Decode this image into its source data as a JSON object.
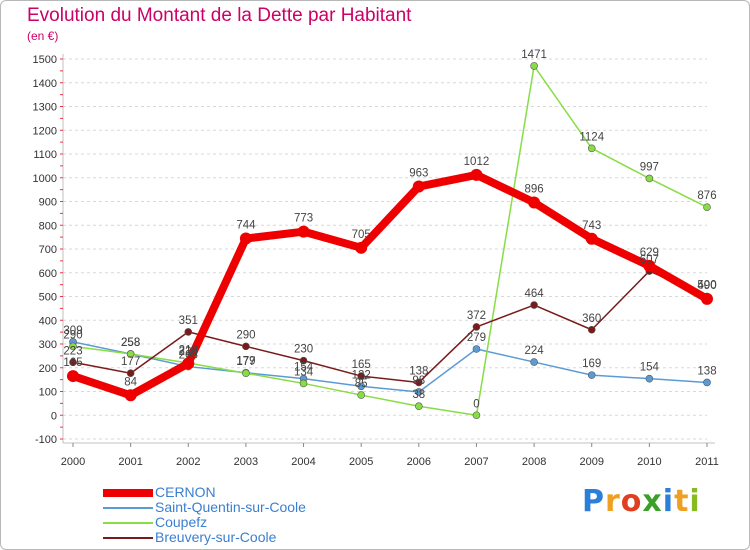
{
  "title": "Evolution du Montant de la Dette par Habitant",
  "subtitle": "(en €)",
  "logo": "Proxiti",
  "chart_data": {
    "type": "line",
    "title": "Evolution du Montant de la Dette par Habitant",
    "ylabel": "(en €)",
    "xlabel": "",
    "categories": [
      "2000",
      "2001",
      "2002",
      "2003",
      "2004",
      "2005",
      "2006",
      "2007",
      "2008",
      "2009",
      "2010",
      "2011"
    ],
    "ylim": [
      -100,
      1500
    ],
    "yticks": [
      -100,
      0,
      100,
      200,
      300,
      400,
      500,
      600,
      700,
      800,
      900,
      1000,
      1100,
      1200,
      1300,
      1400,
      1500
    ],
    "grid": "dashed-horizontal",
    "legend_position": "bottom-left",
    "series": [
      {
        "name": "CERNON",
        "color": "#ee0000",
        "width": 8,
        "marker_r": 6,
        "values": [
          165,
          84,
          218,
          744,
          773,
          705,
          963,
          1012,
          896,
          743,
          629,
          490
        ],
        "labels": [
          "165",
          "84",
          "218",
          "744",
          "773",
          "705",
          "963",
          "1012",
          "896",
          "743",
          "629",
          "490"
        ]
      },
      {
        "name": "Saint-Quentin-sur-Coole",
        "color": "#5b9bd5",
        "width": 1.5,
        "marker_r": 3.5,
        "values": [
          309,
          258,
          205,
          179,
          154,
          122,
          98,
          279,
          224,
          169,
          154,
          138
        ],
        "labels": [
          "309",
          "258",
          "205",
          "179",
          "154",
          "122",
          "98",
          "279",
          "224",
          "169",
          "154",
          "138"
        ]
      },
      {
        "name": "Coupefz",
        "color": "#88dd44",
        "width": 1.5,
        "marker_r": 3.5,
        "values": [
          290,
          258,
          220,
          177,
          134,
          85,
          38,
          0,
          1471,
          1124,
          997,
          876
        ],
        "labels": [
          "290",
          "258",
          "220",
          "177",
          "134",
          "85",
          "38",
          "0",
          "1471",
          "1124",
          "997",
          "876"
        ]
      },
      {
        "name": "Breuvery-sur-Coole",
        "color": "#7a1a1a",
        "width": 1.5,
        "marker_r": 3.5,
        "values": [
          223,
          177,
          351,
          290,
          230,
          165,
          138,
          372,
          464,
          360,
          607,
          500
        ],
        "labels": [
          "223",
          "177",
          "351",
          "290",
          "230",
          "165",
          "138",
          "372",
          "464",
          "360",
          "607",
          "500"
        ]
      }
    ]
  }
}
